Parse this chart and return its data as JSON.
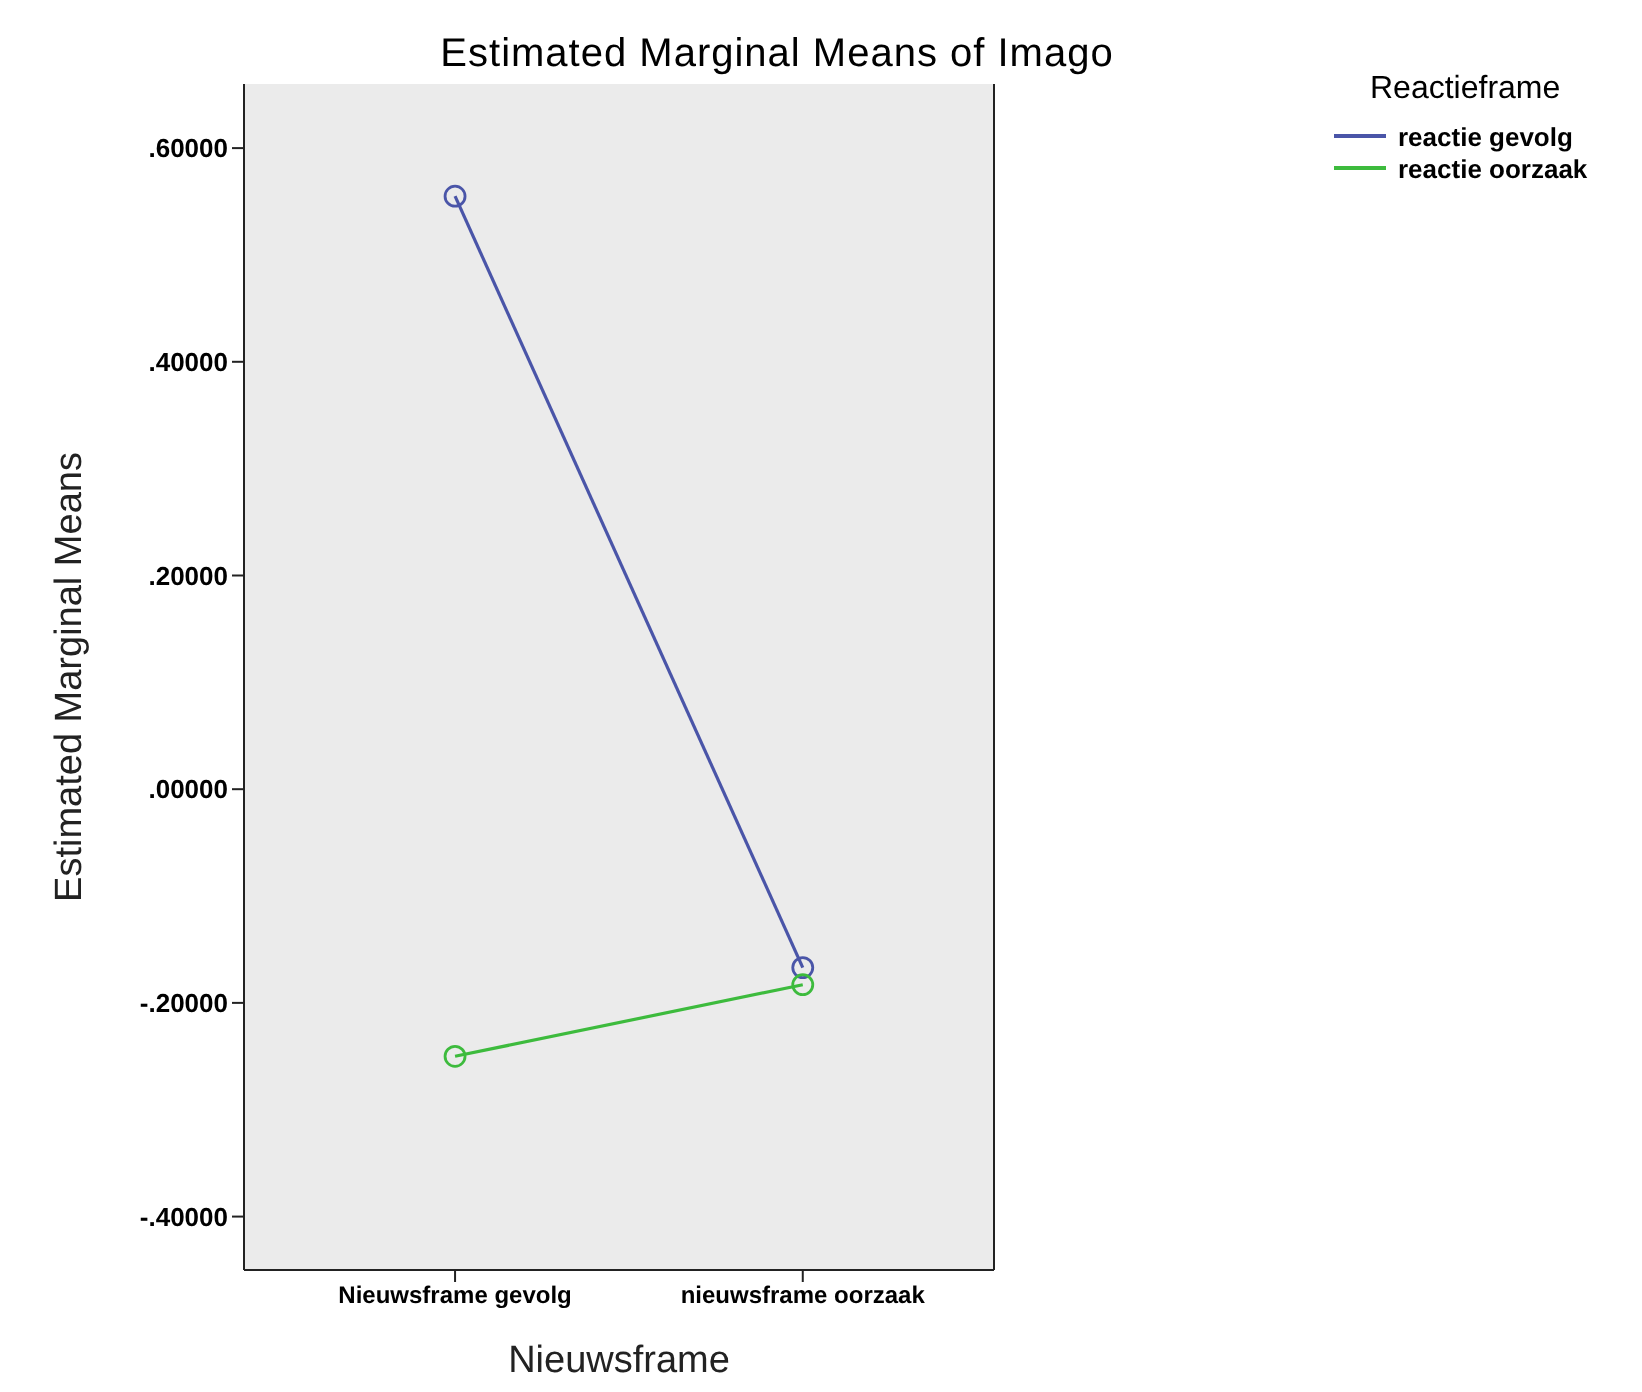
{
  "chart_data": {
    "type": "line",
    "title": "Estimated Marginal Means of Imago",
    "xlabel": "Nieuwsframe",
    "ylabel": "Estimated Marginal Means",
    "legend_title": "Reactieframe",
    "categories": [
      "Nieuwsframe gevolg",
      "nieuwsframe oorzaak"
    ],
    "series": [
      {
        "name": "reactie gevolg",
        "color": "#4a55a8",
        "values": [
          0.555,
          -0.167
        ]
      },
      {
        "name": "reactie oorzaak",
        "color": "#3dbb3d",
        "values": [
          -0.25,
          -0.183
        ]
      }
    ],
    "ylim": [
      -0.45,
      0.66
    ],
    "yticks": [
      {
        "value": -0.4,
        "label": "-.40000"
      },
      {
        "value": -0.2,
        "label": "-.20000"
      },
      {
        "value": 0,
        "label": ".00000"
      },
      {
        "value": 0.2,
        "label": ".20000"
      },
      {
        "value": 0.4,
        "label": ".40000"
      },
      {
        "value": 0.6,
        "label": ".60000"
      }
    ],
    "marker": "circle",
    "legend": "top right",
    "grid": false
  }
}
